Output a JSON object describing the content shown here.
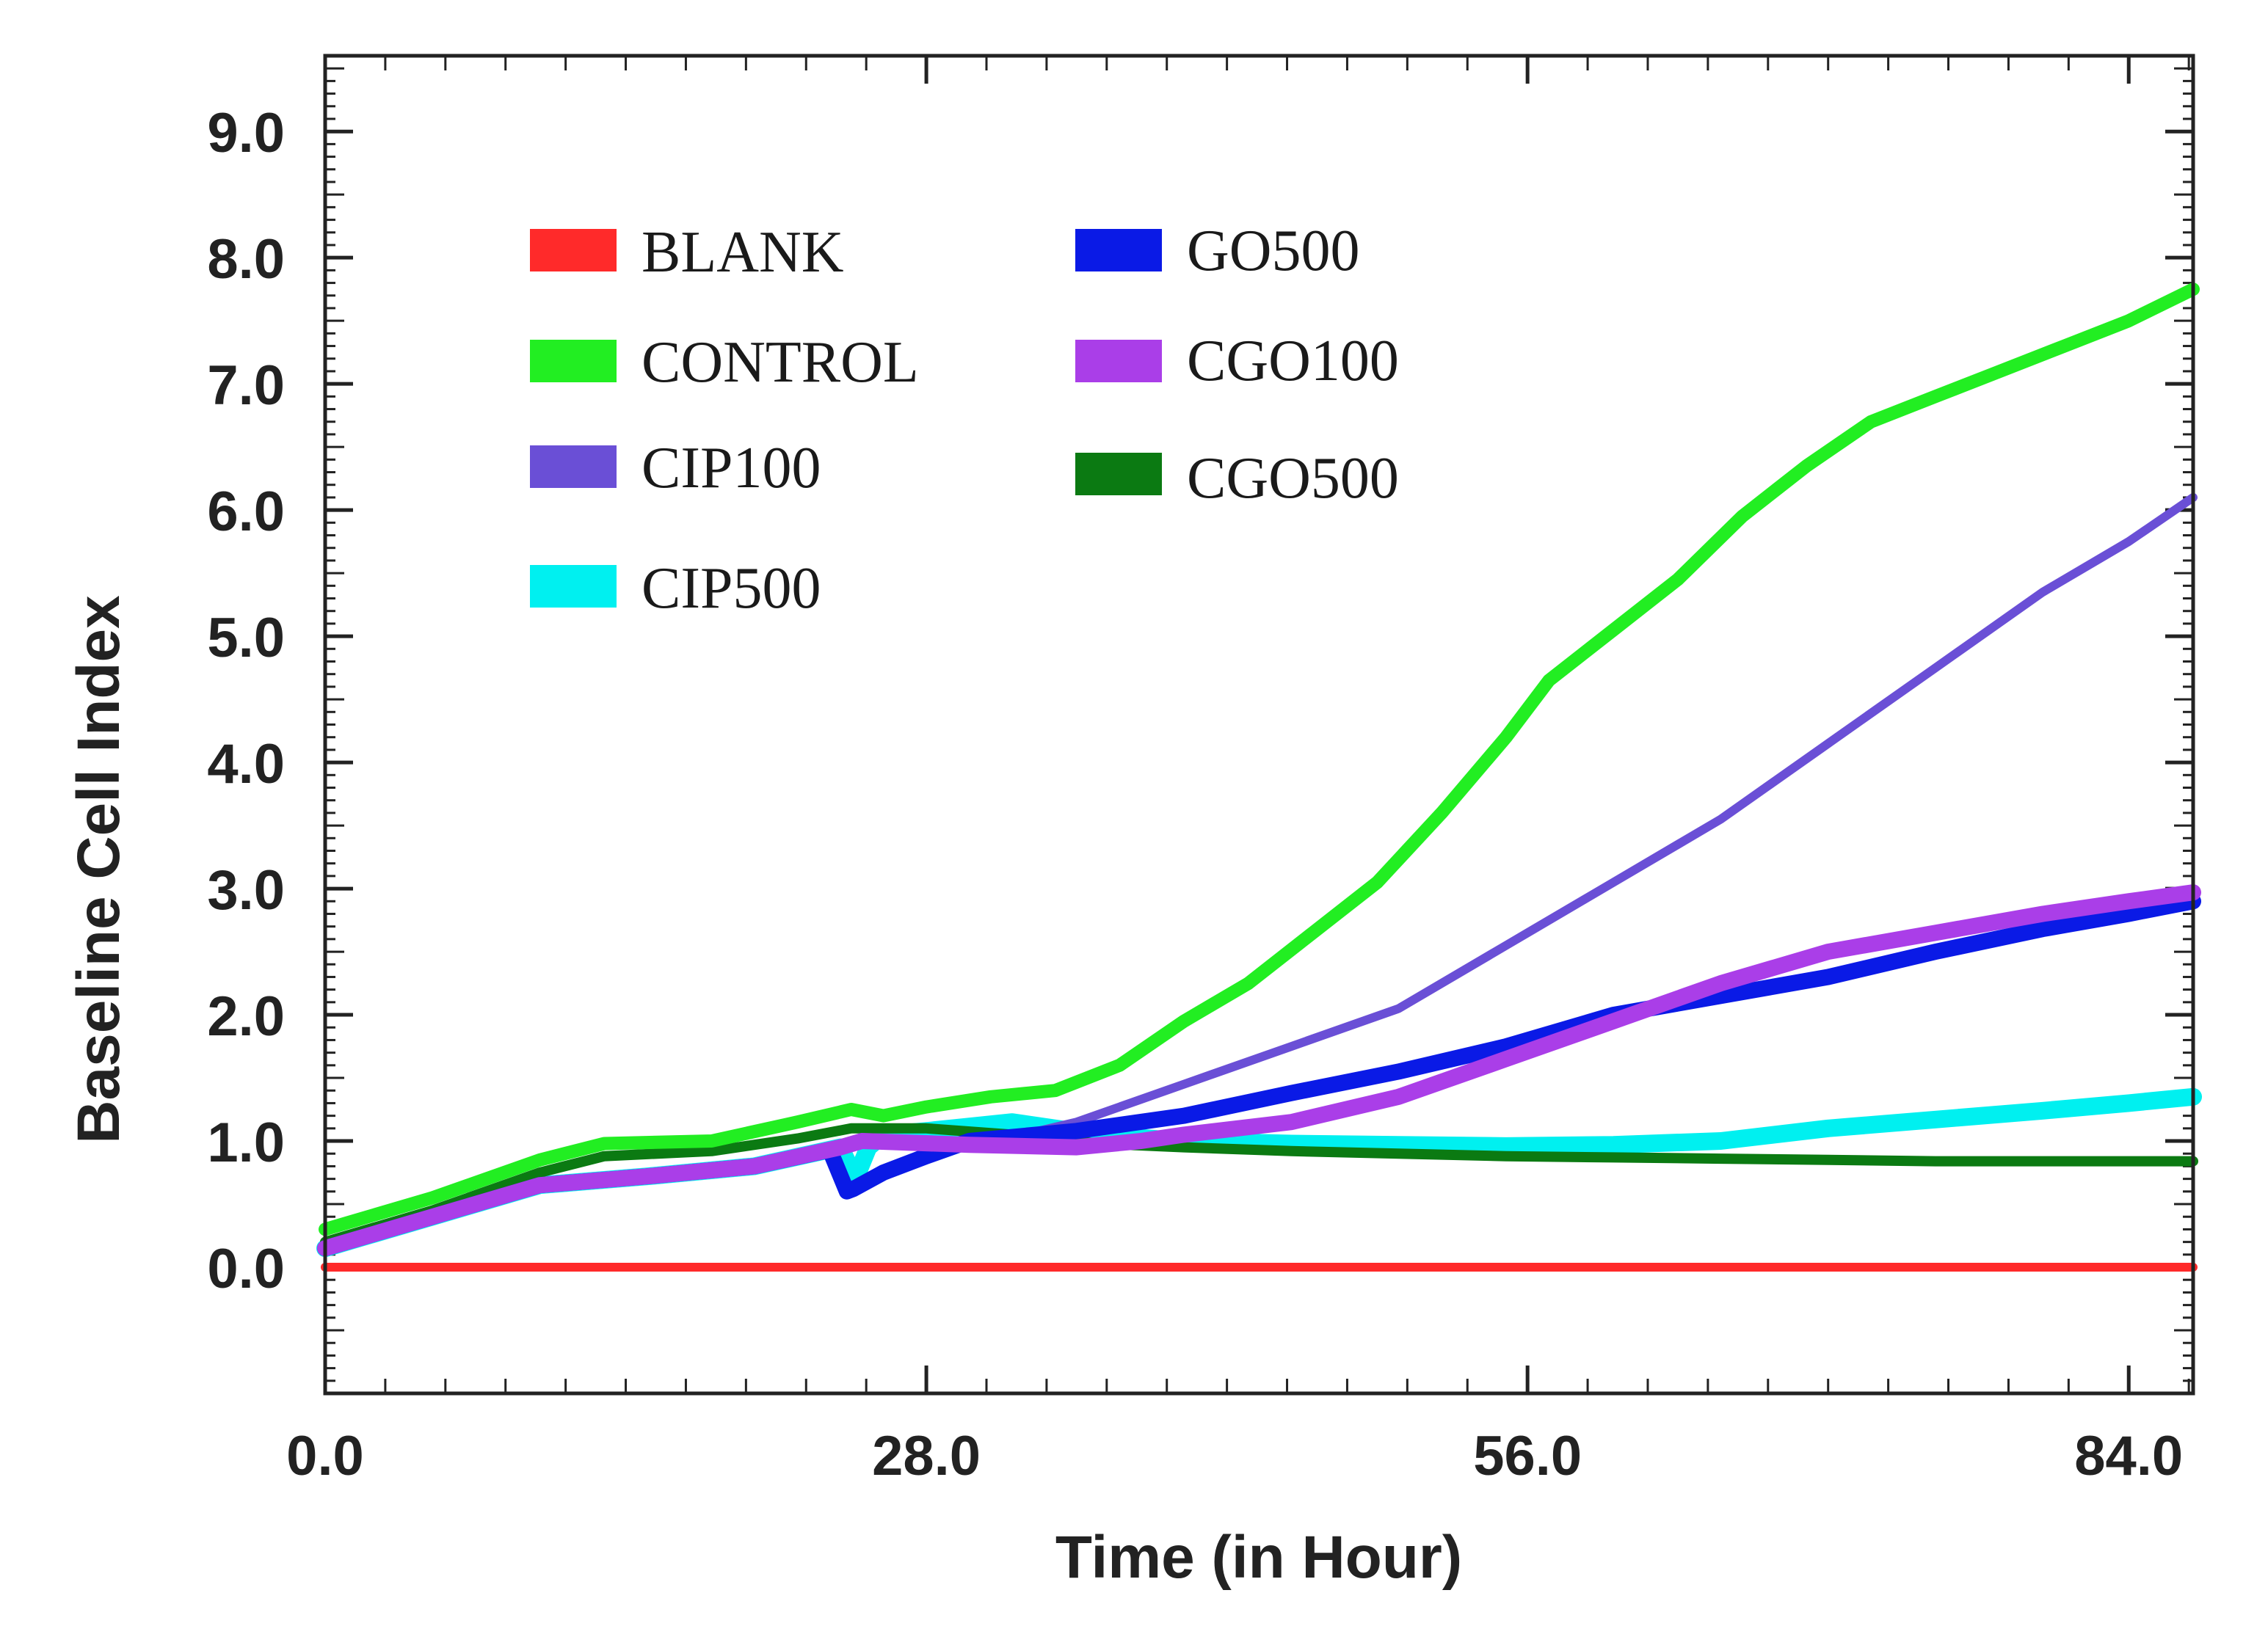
{
  "chart_data": {
    "type": "line",
    "title": "",
    "xlabel": "Time (in Hour)",
    "ylabel": "Baseline Cell Index",
    "xlim": [
      0,
      87
    ],
    "ylim": [
      -1,
      9.6
    ],
    "x_ticks": [
      "0.0",
      "28.0",
      "56.0",
      "84.0"
    ],
    "x_tick_values": [
      0,
      28,
      56,
      84
    ],
    "y_ticks": [
      "0.0",
      "1.0",
      "2.0",
      "3.0",
      "4.0",
      "5.0",
      "6.0",
      "7.0",
      "8.0",
      "9.0"
    ],
    "y_tick_values": [
      0,
      1,
      2,
      3,
      4,
      5,
      6,
      7,
      8,
      9
    ],
    "grid": false,
    "legend_position": "top-left",
    "series": [
      {
        "name": "BLANK",
        "color": "#ff2a2a",
        "x": [
          0,
          10,
          20,
          30,
          40,
          50,
          60,
          70,
          80,
          87
        ],
        "values": [
          0,
          0,
          0,
          0,
          0,
          0,
          0,
          0,
          0,
          0
        ]
      },
      {
        "name": "CONTROL",
        "color": "#22ee22",
        "x": [
          0,
          5,
          10,
          13,
          18,
          22,
          24.5,
          26,
          28,
          31,
          34,
          37,
          40,
          43,
          46,
          49,
          52,
          55,
          57,
          60,
          63,
          66,
          69,
          72,
          75,
          78,
          81,
          84,
          87
        ],
        "values": [
          0.3,
          0.55,
          0.85,
          0.98,
          1.0,
          1.15,
          1.25,
          1.2,
          1.27,
          1.35,
          1.4,
          1.6,
          1.95,
          2.25,
          2.65,
          3.05,
          3.6,
          4.2,
          4.65,
          5.05,
          5.45,
          5.95,
          6.35,
          6.7,
          6.9,
          7.1,
          7.3,
          7.5,
          7.75
        ]
      },
      {
        "name": "CIP100",
        "color": "#6a4fd6",
        "x": [
          0,
          5,
          10,
          15,
          20,
          24,
          25,
          27,
          30,
          35,
          40,
          45,
          50,
          55,
          60,
          65,
          70,
          75,
          80,
          84,
          87
        ],
        "values": [
          0.15,
          0.4,
          0.65,
          0.72,
          0.8,
          0.95,
          0.98,
          1.0,
          0.95,
          1.15,
          1.45,
          1.75,
          2.05,
          2.55,
          3.05,
          3.55,
          4.15,
          4.75,
          5.35,
          5.75,
          6.1
        ]
      },
      {
        "name": "CIP500",
        "color": "#00f0f0",
        "x": [
          0,
          5,
          10,
          15,
          20,
          24,
          24.7,
          25.3,
          26,
          28,
          32,
          36,
          40,
          45,
          50,
          55,
          60,
          65,
          70,
          75,
          80,
          84,
          87
        ],
        "values": [
          0.15,
          0.4,
          0.65,
          0.72,
          0.8,
          0.95,
          0.7,
          0.95,
          1.05,
          1.08,
          1.15,
          1.05,
          1.0,
          0.98,
          0.97,
          0.96,
          0.97,
          1.0,
          1.1,
          1.17,
          1.24,
          1.3,
          1.35
        ]
      },
      {
        "name": "GO500",
        "color": "#0a1ae6",
        "x": [
          0,
          5,
          10,
          15,
          20,
          23.5,
          24.3,
          24.6,
          26,
          28,
          30,
          35,
          40,
          45,
          50,
          55,
          60,
          65,
          70,
          75,
          80,
          84,
          87
        ],
        "values": [
          0.15,
          0.4,
          0.65,
          0.72,
          0.8,
          0.93,
          0.6,
          0.62,
          0.75,
          0.88,
          1.0,
          1.08,
          1.2,
          1.38,
          1.55,
          1.75,
          2.0,
          2.15,
          2.3,
          2.5,
          2.68,
          2.8,
          2.9
        ]
      },
      {
        "name": "CGO100",
        "color": "#aa3ee8",
        "x": [
          0,
          5,
          10,
          15,
          20,
          24,
          25,
          30,
          35,
          38,
          40,
          45,
          50,
          55,
          60,
          65,
          70,
          75,
          80,
          84,
          87
        ],
        "values": [
          0.15,
          0.4,
          0.65,
          0.72,
          0.8,
          0.95,
          1.0,
          0.97,
          0.95,
          1.0,
          1.05,
          1.15,
          1.35,
          1.65,
          1.95,
          2.25,
          2.5,
          2.65,
          2.8,
          2.9,
          2.97
        ]
      },
      {
        "name": "CGO500",
        "color": "#0b7a12",
        "x": [
          0,
          5,
          10,
          13,
          18,
          22,
          24.5,
          26,
          28,
          32,
          36,
          40,
          45,
          50,
          55,
          60,
          65,
          70,
          75,
          80,
          87
        ],
        "values": [
          0.2,
          0.45,
          0.75,
          0.88,
          0.92,
          1.02,
          1.1,
          1.1,
          1.1,
          1.05,
          0.98,
          0.95,
          0.92,
          0.9,
          0.88,
          0.87,
          0.86,
          0.85,
          0.84,
          0.84,
          0.84
        ]
      }
    ]
  }
}
